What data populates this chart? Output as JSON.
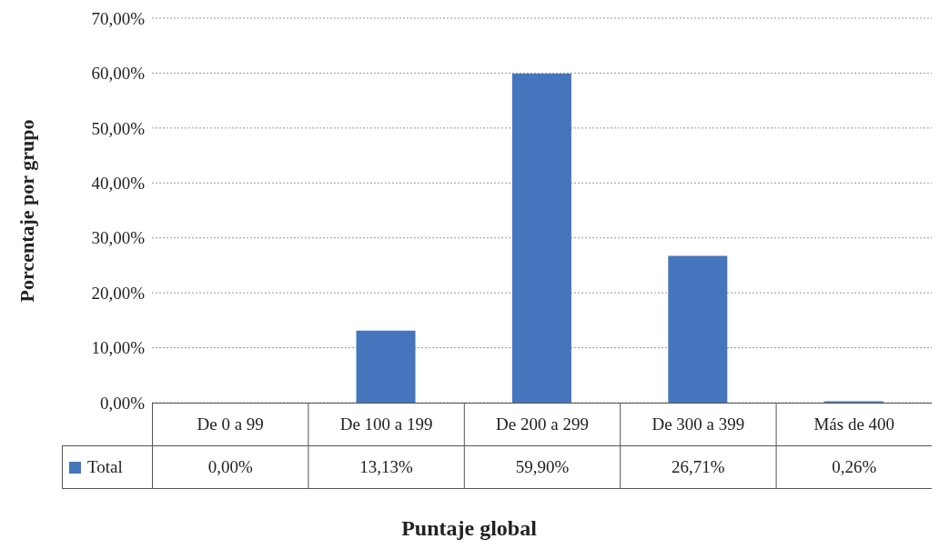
{
  "chart_data": {
    "type": "bar",
    "xlabel": "Puntaje global",
    "ylabel": "Porcentaje por grupo",
    "categories": [
      "De 0 a 99",
      "De 100 a 199",
      "De 200 a 299",
      "De 300 a 399",
      "Más de 400"
    ],
    "series": [
      {
        "name": "Total",
        "color": "#4575bd",
        "values": [
          0,
          13.13,
          59.9,
          26.71,
          0.26
        ],
        "value_labels": [
          "0,00%",
          "13,13%",
          "59,90%",
          "26,71%",
          "0,26%"
        ]
      }
    ],
    "ylim": [
      0,
      70
    ],
    "yticks": [
      {
        "value": 0,
        "label": "0,00%"
      },
      {
        "value": 10,
        "label": "10,00%"
      },
      {
        "value": 20,
        "label": "20,00%"
      },
      {
        "value": 30,
        "label": "30,00%"
      },
      {
        "value": 40,
        "label": "40,00%"
      },
      {
        "value": 50,
        "label": "50,00%"
      },
      {
        "value": 60,
        "label": "60,00%"
      },
      {
        "value": 70,
        "label": "70,00%"
      }
    ],
    "grid": "y",
    "legend": "bottom"
  }
}
